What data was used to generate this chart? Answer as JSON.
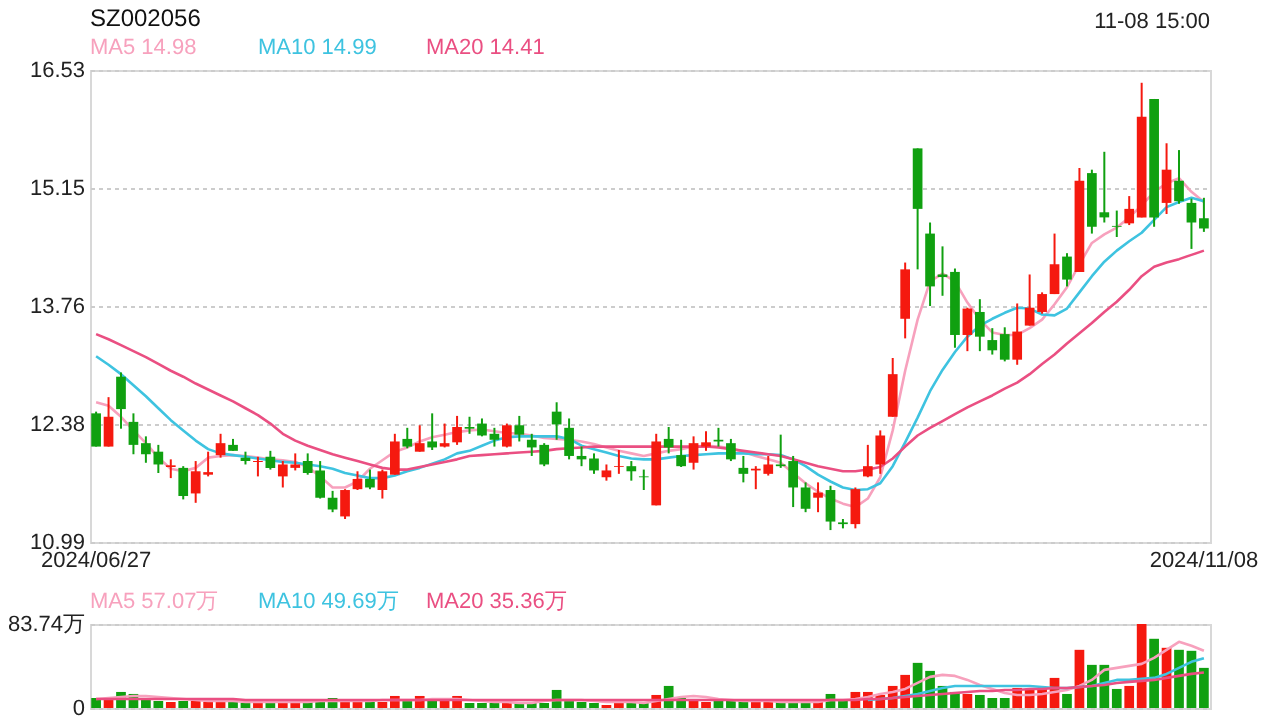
{
  "chart_data": [
    {
      "type": "candlestick",
      "title": "SZ002056",
      "annotations": [
        "MA5 14.98",
        "MA10 14.99",
        "MA20 14.41",
        "11-08 15:00"
      ],
      "categories": [
        "2024/06/27",
        null,
        null,
        null,
        null,
        null,
        null,
        null,
        null,
        null,
        null,
        null,
        null,
        null,
        null,
        null,
        null,
        null,
        null,
        null,
        null,
        null,
        null,
        null,
        null,
        null,
        null,
        null,
        null,
        null,
        null,
        null,
        null,
        null,
        null,
        null,
        null,
        null,
        null,
        null,
        null,
        null,
        null,
        null,
        null,
        null,
        null,
        null,
        null,
        null,
        null,
        null,
        null,
        null,
        null,
        null,
        null,
        null,
        null,
        null,
        null,
        null,
        null,
        null,
        null,
        null,
        null,
        null,
        null,
        null,
        null,
        null,
        null,
        null,
        null,
        null,
        null,
        null,
        null,
        null,
        null,
        null,
        null,
        null,
        null,
        null,
        null,
        null,
        null,
        "2024/11/08"
      ],
      "ohlc": [
        [
          12.5,
          12.52,
          12.11,
          12.11
        ],
        [
          12.11,
          12.69,
          12.11,
          12.46
        ],
        [
          12.93,
          12.98,
          12.32,
          12.55
        ],
        [
          12.4,
          12.5,
          12.02,
          12.13
        ],
        [
          12.15,
          12.23,
          11.92,
          12.02
        ],
        [
          12.05,
          12.13,
          11.8,
          11.9
        ],
        [
          11.87,
          11.96,
          11.74,
          11.89
        ],
        [
          11.86,
          11.88,
          11.49,
          11.53
        ],
        [
          11.56,
          11.94,
          11.45,
          11.82
        ],
        [
          11.78,
          12.05,
          11.76,
          11.81
        ],
        [
          12.01,
          12.26,
          11.98,
          12.15
        ],
        [
          12.13,
          12.2,
          12.06,
          12.06
        ],
        [
          11.98,
          12.05,
          11.9,
          11.94
        ],
        [
          11.93,
          11.99,
          11.76,
          11.94
        ],
        [
          11.99,
          12.06,
          11.84,
          11.86
        ],
        [
          11.76,
          11.94,
          11.63,
          11.9
        ],
        [
          11.86,
          12.03,
          11.83,
          11.9
        ],
        [
          11.94,
          12.03,
          11.78,
          11.8
        ],
        [
          11.83,
          11.94,
          11.5,
          11.51
        ],
        [
          11.51,
          11.59,
          11.34,
          11.37
        ],
        [
          11.29,
          11.61,
          11.26,
          11.6
        ],
        [
          11.61,
          11.82,
          11.6,
          11.73
        ],
        [
          11.73,
          11.84,
          11.61,
          11.63
        ],
        [
          11.6,
          11.84,
          11.5,
          11.82
        ],
        [
          11.78,
          12.26,
          11.78,
          12.17
        ],
        [
          12.2,
          12.33,
          12.09,
          12.11
        ],
        [
          12.05,
          12.36,
          12.05,
          12.15
        ],
        [
          12.17,
          12.5,
          12.07,
          12.1
        ],
        [
          12.11,
          12.38,
          12.1,
          12.15
        ],
        [
          12.16,
          12.47,
          12.13,
          12.34
        ],
        [
          12.34,
          12.46,
          12.26,
          12.32
        ],
        [
          12.38,
          12.44,
          12.23,
          12.24
        ],
        [
          12.26,
          12.33,
          12.11,
          12.19
        ],
        [
          12.11,
          12.38,
          12.1,
          12.36
        ],
        [
          12.36,
          12.47,
          12.17,
          12.25
        ],
        [
          12.19,
          12.26,
          12.0,
          12.1
        ],
        [
          12.13,
          12.15,
          11.88,
          11.9
        ],
        [
          12.52,
          12.63,
          12.19,
          12.37
        ],
        [
          12.33,
          12.44,
          11.96,
          12.0
        ],
        [
          12.0,
          12.11,
          11.88,
          11.96
        ],
        [
          11.97,
          12.03,
          11.79,
          11.83
        ],
        [
          11.75,
          11.9,
          11.71,
          11.83
        ],
        [
          11.87,
          12.07,
          11.79,
          11.88
        ],
        [
          11.88,
          11.94,
          11.71,
          11.82
        ],
        [
          11.76,
          11.84,
          11.6,
          11.75
        ],
        [
          11.42,
          12.26,
          11.42,
          12.17
        ],
        [
          12.2,
          12.34,
          12.03,
          12.1
        ],
        [
          12.01,
          12.19,
          11.87,
          11.88
        ],
        [
          11.92,
          12.23,
          11.84,
          12.15
        ],
        [
          12.11,
          12.29,
          12.06,
          12.16
        ],
        [
          12.19,
          12.33,
          12.11,
          12.17
        ],
        [
          12.15,
          12.2,
          11.94,
          11.96
        ],
        [
          11.86,
          12.0,
          11.69,
          11.79
        ],
        [
          11.83,
          11.88,
          11.61,
          11.85
        ],
        [
          11.79,
          12.0,
          11.77,
          11.9
        ],
        [
          11.9,
          12.25,
          11.86,
          11.88
        ],
        [
          11.94,
          12.0,
          11.4,
          11.63
        ],
        [
          11.63,
          11.69,
          11.34,
          11.38
        ],
        [
          11.51,
          11.69,
          11.34,
          11.57
        ],
        [
          11.6,
          11.65,
          11.13,
          11.23
        ],
        [
          11.22,
          11.26,
          11.15,
          11.2
        ],
        [
          11.2,
          11.63,
          11.15,
          11.61
        ],
        [
          11.76,
          12.13,
          11.75,
          11.88
        ],
        [
          11.9,
          12.3,
          11.79,
          12.24
        ],
        [
          12.46,
          13.15,
          12.46,
          12.96
        ],
        [
          13.61,
          14.27,
          13.38,
          14.19
        ],
        [
          15.61,
          15.61,
          14.19,
          14.9
        ],
        [
          14.61,
          14.74,
          13.76,
          13.99
        ],
        [
          14.13,
          14.46,
          13.88,
          14.1
        ],
        [
          14.16,
          14.2,
          13.27,
          13.42
        ],
        [
          13.42,
          13.74,
          13.23,
          13.73
        ],
        [
          13.69,
          13.84,
          13.23,
          13.4
        ],
        [
          13.36,
          13.5,
          13.19,
          13.24
        ],
        [
          13.43,
          13.51,
          13.11,
          13.13
        ],
        [
          13.13,
          13.79,
          13.07,
          13.46
        ],
        [
          13.53,
          14.13,
          13.53,
          13.74
        ],
        [
          13.69,
          13.92,
          13.67,
          13.9
        ],
        [
          13.9,
          14.61,
          13.9,
          14.25
        ],
        [
          14.34,
          14.38,
          13.99,
          14.07
        ],
        [
          14.16,
          15.38,
          14.16,
          15.23
        ],
        [
          15.32,
          15.36,
          14.61,
          14.69
        ],
        [
          14.86,
          15.57,
          14.74,
          14.8
        ],
        [
          14.7,
          14.88,
          14.57,
          14.69
        ],
        [
          14.73,
          15.05,
          14.71,
          14.9
        ],
        [
          14.8,
          16.38,
          14.8,
          15.98
        ],
        [
          16.19,
          16.19,
          14.69,
          14.8
        ],
        [
          14.97,
          15.67,
          14.84,
          15.36
        ],
        [
          15.23,
          15.59,
          14.96,
          14.99
        ],
        [
          14.97,
          15.02,
          14.43,
          14.74
        ],
        [
          14.79,
          15.03,
          14.63,
          14.67
        ]
      ],
      "colors": [
        "#10a010",
        "#f5190f",
        "#10a010",
        "#10a010",
        "#10a010",
        "#10a010",
        "#f5190f",
        "#10a010",
        "#f5190f",
        "#f5190f",
        "#f5190f",
        "#10a010",
        "#10a010",
        "#f5190f",
        "#10a010",
        "#f5190f",
        "#f5190f",
        "#10a010",
        "#10a010",
        "#10a010",
        "#f5190f",
        "#f5190f",
        "#10a010",
        "#f5190f",
        "#f5190f",
        "#10a010",
        "#f5190f",
        "#10a010",
        "#f5190f",
        "#f5190f",
        "#10a010",
        "#10a010",
        "#10a010",
        "#f5190f",
        "#10a010",
        "#10a010",
        "#10a010",
        "#10a010",
        "#10a010",
        "#10a010",
        "#10a010",
        "#f5190f",
        "#f5190f",
        "#10a010",
        "#10a010",
        "#f5190f",
        "#10a010",
        "#10a010",
        "#f5190f",
        "#f5190f",
        "#10a010",
        "#10a010",
        "#10a010",
        "#f5190f",
        "#f5190f",
        "#10a010",
        "#10a010",
        "#10a010",
        "#f5190f",
        "#10a010",
        "#10a010",
        "#f5190f",
        "#f5190f",
        "#f5190f",
        "#f5190f",
        "#f5190f",
        "#10a010",
        "#10a010",
        "#10a010",
        "#10a010",
        "#f5190f",
        "#10a010",
        "#10a010",
        "#10a010",
        "#f5190f",
        "#f5190f",
        "#f5190f",
        "#f5190f",
        "#10a010",
        "#f5190f",
        "#10a010",
        "#10a010",
        "#10a010",
        "#f5190f",
        "#f5190f",
        "#10a010",
        "#f5190f",
        "#10a010",
        "#10a010",
        "#10a010"
      ],
      "series": [
        {
          "type": "line",
          "color": "#f7a1bd",
          "values": [
            12.63,
            12.59,
            12.46,
            12.3,
            12.15,
            11.98,
            11.85,
            11.82,
            11.86,
            11.98,
            12.0,
            12.01,
            12.0,
            11.98,
            11.96,
            11.95,
            11.93,
            11.87,
            11.76,
            11.63,
            11.63,
            11.7,
            11.85,
            11.95,
            12.05,
            12.1,
            12.17,
            12.22,
            12.25,
            12.28,
            12.3,
            12.31,
            12.29,
            12.27,
            12.26,
            12.24,
            12.21,
            12.2,
            12.19,
            12.17,
            12.14,
            12.1,
            12.06,
            12.03,
            12.0,
            12.03,
            12.06,
            12.08,
            12.11,
            12.12,
            12.11,
            12.09,
            12.05,
            12.0,
            11.96,
            11.92,
            11.8,
            11.68,
            11.58,
            11.5,
            11.44,
            11.4,
            11.5,
            11.75,
            12.3,
            13.0,
            13.6,
            14.05,
            14.14,
            14.05,
            13.8,
            13.6,
            13.45,
            13.42,
            13.42,
            13.5,
            13.6,
            13.78,
            13.98,
            14.25,
            14.5,
            14.6,
            14.68,
            14.8,
            14.94,
            15.1,
            15.2,
            15.26,
            15.1,
            14.98
          ]
        },
        {
          "type": "line",
          "color": "#3ec3e0",
          "values": [
            13.17,
            13.07,
            12.96,
            12.83,
            12.7,
            12.56,
            12.42,
            12.3,
            12.18,
            12.08,
            12.03,
            12.01,
            11.99,
            11.97,
            11.95,
            11.93,
            11.92,
            11.9,
            11.88,
            11.85,
            11.8,
            11.77,
            11.74,
            11.74,
            11.77,
            11.82,
            11.86,
            11.91,
            11.96,
            12.03,
            12.06,
            12.12,
            12.18,
            12.22,
            12.23,
            12.23,
            12.23,
            12.23,
            12.2,
            12.12,
            12.08,
            12.04,
            12.0,
            11.97,
            11.96,
            11.96,
            11.98,
            12.0,
            12.01,
            12.02,
            12.03,
            12.03,
            12.03,
            12.02,
            12.02,
            12.01,
            11.96,
            11.88,
            11.78,
            11.7,
            11.63,
            11.6,
            11.61,
            11.68,
            11.88,
            12.16,
            12.45,
            12.76,
            13.01,
            13.22,
            13.4,
            13.53,
            13.61,
            13.68,
            13.74,
            13.73,
            13.66,
            13.65,
            13.73,
            13.92,
            14.11,
            14.28,
            14.41,
            14.52,
            14.62,
            14.77,
            14.92,
            14.98,
            15.03,
            14.99
          ]
        },
        {
          "type": "line",
          "color": "#ea4f82",
          "values": [
            13.43,
            13.37,
            13.3,
            13.23,
            13.16,
            13.08,
            13.0,
            12.93,
            12.85,
            12.78,
            12.71,
            12.64,
            12.56,
            12.48,
            12.38,
            12.26,
            12.18,
            12.12,
            12.07,
            12.02,
            11.98,
            11.94,
            11.9,
            11.86,
            11.84,
            11.84,
            11.87,
            11.9,
            11.93,
            11.96,
            12.0,
            12.01,
            12.02,
            12.03,
            12.04,
            12.05,
            12.06,
            12.08,
            12.09,
            12.1,
            12.11,
            12.11,
            12.11,
            12.11,
            12.11,
            12.11,
            12.11,
            12.11,
            12.11,
            12.11,
            12.1,
            12.08,
            12.06,
            12.04,
            12.02,
            12.0,
            11.96,
            11.92,
            11.88,
            11.85,
            11.82,
            11.82,
            11.84,
            11.87,
            11.97,
            12.11,
            12.24,
            12.33,
            12.41,
            12.49,
            12.57,
            12.64,
            12.71,
            12.79,
            12.86,
            12.96,
            13.08,
            13.19,
            13.32,
            13.44,
            13.56,
            13.69,
            13.81,
            13.95,
            14.11,
            14.22,
            14.27,
            14.31,
            14.36,
            14.41
          ]
        }
      ],
      "ylim": [
        10.99,
        16.53
      ],
      "yticks": [
        16.53,
        15.15,
        13.76,
        12.38,
        10.99
      ],
      "grid": "y"
    },
    {
      "type": "bar",
      "annotations": [
        "MA5 57.07万",
        "MA10 49.69万",
        "MA20 35.36万"
      ],
      "categories": [
        null,
        null,
        null,
        null,
        null,
        null,
        null,
        null,
        null,
        null,
        null,
        null,
        null,
        null,
        null,
        null,
        null,
        null,
        null,
        null,
        null,
        null,
        null,
        null,
        null,
        null,
        null,
        null,
        null,
        null,
        null,
        null,
        null,
        null,
        null,
        null,
        null,
        null,
        null,
        null,
        null,
        null,
        null,
        null,
        null,
        null,
        null,
        null,
        null,
        null,
        null,
        null,
        null,
        null,
        null,
        null,
        null,
        null,
        null,
        null,
        null,
        null,
        null,
        null,
        null,
        null,
        null,
        null,
        null,
        null,
        null,
        null,
        null,
        null,
        null,
        null,
        null,
        null,
        null,
        null,
        null,
        null,
        null,
        null,
        null,
        null,
        null,
        null,
        null,
        null
      ],
      "values": [
        10,
        9,
        16,
        14,
        9,
        7,
        6,
        7,
        7,
        6,
        7,
        6,
        5,
        6,
        7,
        6,
        6,
        6,
        7,
        10,
        7,
        6,
        6,
        6,
        12,
        7,
        12,
        9,
        9,
        12,
        5,
        5,
        5,
        6,
        5,
        5,
        5,
        18,
        7,
        6,
        5,
        3,
        6,
        5,
        5,
        13,
        22,
        10,
        8,
        6,
        7,
        8,
        8,
        6,
        6,
        6,
        6,
        6,
        6,
        14,
        7,
        16,
        16,
        13,
        22,
        33,
        45,
        37,
        22,
        16,
        14,
        13,
        10,
        10,
        20,
        19,
        20,
        30,
        14,
        58,
        43,
        43,
        19,
        22,
        83.74,
        69,
        60,
        58,
        57,
        40
      ],
      "colors": [
        "#10a010",
        "#f5190f",
        "#10a010",
        "#10a010",
        "#10a010",
        "#10a010",
        "#f5190f",
        "#10a010",
        "#f5190f",
        "#f5190f",
        "#f5190f",
        "#10a010",
        "#10a010",
        "#f5190f",
        "#10a010",
        "#f5190f",
        "#f5190f",
        "#10a010",
        "#10a010",
        "#10a010",
        "#f5190f",
        "#f5190f",
        "#10a010",
        "#f5190f",
        "#f5190f",
        "#10a010",
        "#f5190f",
        "#10a010",
        "#f5190f",
        "#f5190f",
        "#10a010",
        "#10a010",
        "#10a010",
        "#f5190f",
        "#10a010",
        "#10a010",
        "#10a010",
        "#10a010",
        "#10a010",
        "#10a010",
        "#10a010",
        "#f5190f",
        "#f5190f",
        "#10a010",
        "#10a010",
        "#f5190f",
        "#10a010",
        "#10a010",
        "#f5190f",
        "#f5190f",
        "#10a010",
        "#10a010",
        "#10a010",
        "#f5190f",
        "#f5190f",
        "#10a010",
        "#10a010",
        "#10a010",
        "#f5190f",
        "#10a010",
        "#10a010",
        "#f5190f",
        "#f5190f",
        "#f5190f",
        "#f5190f",
        "#f5190f",
        "#10a010",
        "#10a010",
        "#10a010",
        "#10a010",
        "#f5190f",
        "#10a010",
        "#10a010",
        "#10a010",
        "#f5190f",
        "#f5190f",
        "#f5190f",
        "#f5190f",
        "#10a010",
        "#f5190f",
        "#10a010",
        "#10a010",
        "#10a010",
        "#f5190f",
        "#f5190f",
        "#10a010",
        "#f5190f",
        "#10a010",
        "#10a010",
        "#10a010"
      ],
      "series": [
        {
          "type": "line",
          "color": "#f7a1bd",
          "values": [
            9,
            10,
            11,
            12,
            12,
            11,
            10,
            9,
            8,
            7,
            7,
            7,
            6,
            6,
            6,
            6,
            6,
            6,
            7,
            7,
            7,
            7,
            7,
            8,
            8,
            8,
            8,
            9,
            9,
            9,
            8,
            7,
            6,
            6,
            5,
            5,
            7,
            8,
            8,
            8,
            7,
            6,
            6,
            6,
            5,
            7,
            9,
            11,
            12,
            11,
            9,
            8,
            7,
            7,
            7,
            6,
            6,
            6,
            6,
            8,
            8,
            9,
            11,
            14,
            16,
            19,
            25,
            31,
            33,
            32,
            28,
            23,
            19,
            15,
            13,
            13,
            14,
            16,
            18,
            22,
            28,
            38,
            40,
            42,
            44,
            50,
            58,
            66,
            62,
            57.07
          ]
        },
        {
          "type": "line",
          "color": "#3ec3e0",
          "values": [
            null,
            null,
            null,
            null,
            null,
            null,
            null,
            null,
            null,
            null,
            null,
            null,
            null,
            null,
            null,
            null,
            null,
            null,
            null,
            null,
            null,
            null,
            null,
            null,
            null,
            null,
            null,
            null,
            null,
            null,
            null,
            null,
            null,
            null,
            null,
            null,
            null,
            null,
            null,
            null,
            null,
            null,
            null,
            null,
            null,
            null,
            null,
            null,
            null,
            null,
            null,
            null,
            null,
            null,
            null,
            null,
            null,
            null,
            null,
            null,
            null,
            null,
            8,
            9,
            10,
            12,
            14,
            17,
            20,
            22,
            22,
            22,
            22,
            22,
            22,
            22,
            21,
            20,
            20,
            21,
            22,
            25,
            28,
            28,
            29,
            30,
            34,
            40,
            46,
            49.69
          ]
        },
        {
          "type": "line",
          "color": "#ea4f82",
          "values": [
            9,
            9,
            9,
            9,
            9,
            9,
            9,
            9,
            9,
            9,
            9,
            9,
            8,
            8,
            8,
            8,
            8,
            8,
            8,
            8,
            8,
            8,
            8,
            8,
            8,
            8,
            8,
            8,
            8,
            8,
            8,
            8,
            8,
            8,
            8,
            8,
            8,
            8,
            8,
            8,
            8,
            8,
            8,
            8,
            8,
            8,
            8,
            8,
            8,
            8,
            8,
            8,
            8,
            8,
            8,
            8,
            8,
            8,
            8,
            8,
            8,
            8,
            9,
            9,
            10,
            11,
            12,
            13,
            14,
            15,
            16,
            17,
            17,
            18,
            18,
            19,
            19,
            20,
            20,
            21,
            22,
            23,
            25,
            26,
            27,
            28,
            30,
            32,
            34,
            35.36
          ]
        }
      ],
      "ylim": [
        0,
        83.74
      ],
      "yticks": [
        {
          "value": 83.74,
          "label": "83.74万"
        },
        0
      ],
      "grid": "y"
    }
  ]
}
